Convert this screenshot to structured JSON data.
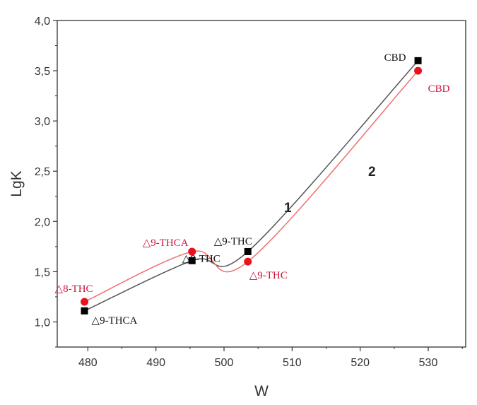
{
  "chart_data": {
    "type": "line",
    "xlabel": "W",
    "ylabel": "LgK",
    "xlim": [
      475.5,
      535.5
    ],
    "ylim": [
      0.75,
      4.0
    ],
    "x_ticks": [
      480,
      490,
      500,
      510,
      520,
      530
    ],
    "x_tick_labels": [
      "480",
      "490",
      "500",
      "510",
      "520",
      "530"
    ],
    "y_ticks": [
      1.0,
      1.5,
      2.0,
      2.5,
      3.0,
      3.5,
      4.0
    ],
    "y_tick_labels": [
      "1,0",
      "1,5",
      "2,0",
      "2,5",
      "3,0",
      "3,5",
      "4,0"
    ],
    "grid": false,
    "series": [
      {
        "name": "1",
        "color": "#000000",
        "line_color": "#555555",
        "marker": "square",
        "points": [
          {
            "x": 479.5,
            "y": 1.11,
            "label": "△9-THCA"
          },
          {
            "x": 495.3,
            "y": 1.61,
            "label": "△8-THC"
          },
          {
            "x": 503.5,
            "y": 1.7,
            "label": "△9-THC"
          },
          {
            "x": 528.5,
            "y": 3.6,
            "label": "CBD"
          }
        ]
      },
      {
        "name": "2",
        "color": "#e8141c",
        "line_color": "#f07070",
        "marker": "circle",
        "points": [
          {
            "x": 479.5,
            "y": 1.2,
            "label": "△8-THC"
          },
          {
            "x": 495.3,
            "y": 1.7,
            "label": "△9-THCA"
          },
          {
            "x": 503.5,
            "y": 1.6,
            "label": "△9-THC"
          },
          {
            "x": 528.5,
            "y": 3.5,
            "label": "CBD"
          }
        ]
      }
    ]
  }
}
